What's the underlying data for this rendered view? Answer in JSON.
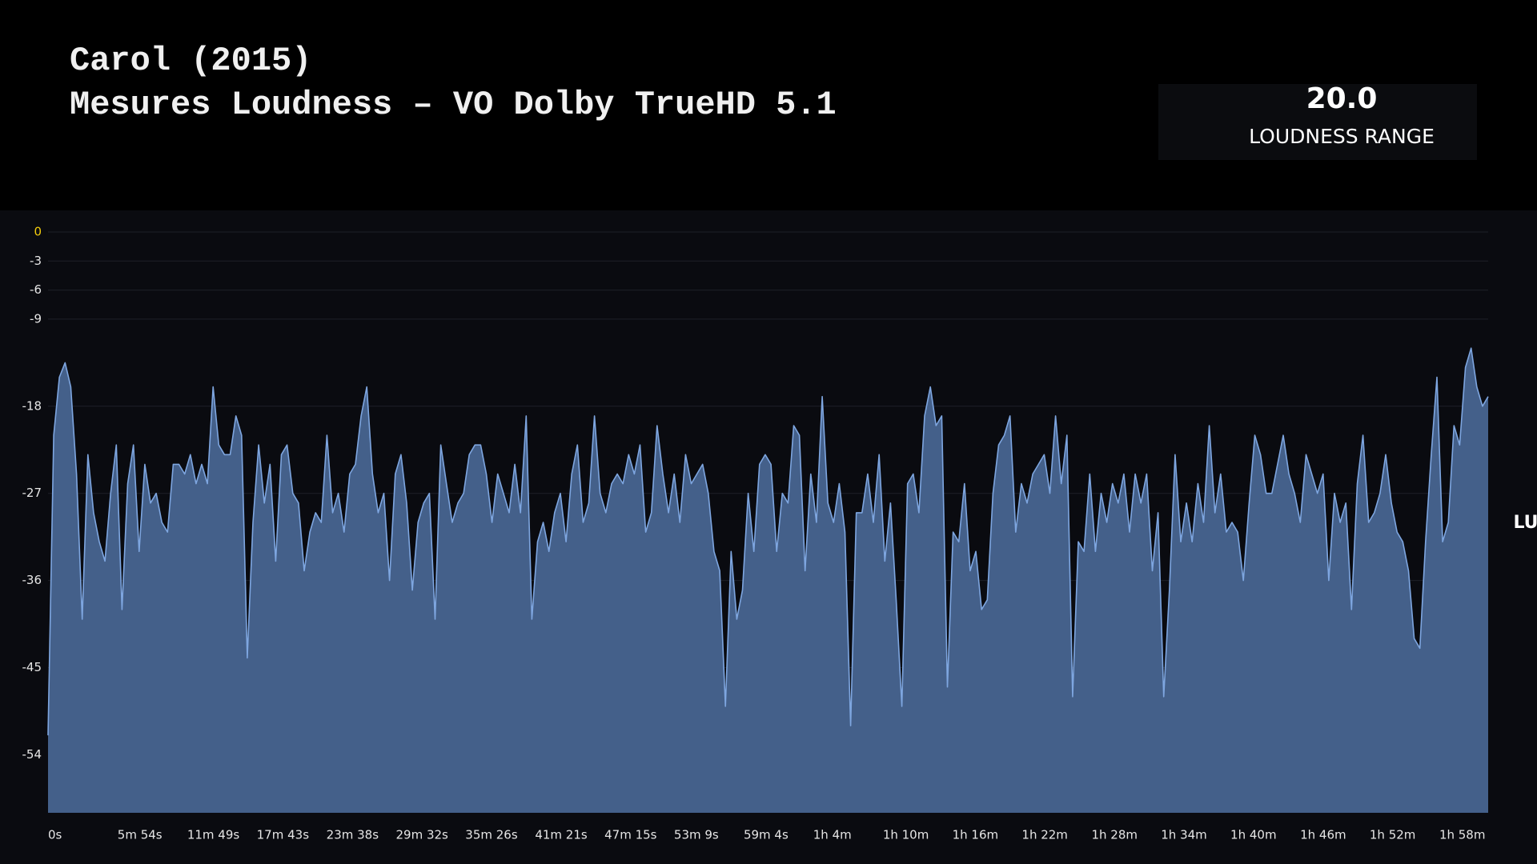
{
  "stat": {
    "value": "20.0",
    "label": "LOUDNESS RANGE"
  },
  "chart_data": {
    "type": "area",
    "title": "Carol (2015)",
    "subtitle": "Mesures Loudness – VO Dolby TrueHD 5.1",
    "y_label": "LU",
    "grid": true,
    "ylim": [
      -60,
      0
    ],
    "yticks": [
      0,
      -3,
      -6,
      -9,
      -18,
      -27,
      -36,
      -45,
      -54
    ],
    "xlim": [
      0,
      7337
    ],
    "xticks": [
      {
        "value": 0,
        "label": "0s"
      },
      {
        "value": 354,
        "label": "5m 54s"
      },
      {
        "value": 709,
        "label": "11m 49s"
      },
      {
        "value": 1063,
        "label": "17m 43s"
      },
      {
        "value": 1418,
        "label": "23m 38s"
      },
      {
        "value": 1772,
        "label": "29m 32s"
      },
      {
        "value": 2126,
        "label": "35m 26s"
      },
      {
        "value": 2481,
        "label": "41m 21s"
      },
      {
        "value": 2835,
        "label": "47m 15s"
      },
      {
        "value": 3189,
        "label": "53m 9s"
      },
      {
        "value": 3544,
        "label": "59m 4s"
      },
      {
        "value": 3898,
        "label": "1h 4m"
      },
      {
        "value": 4253,
        "label": "1h 10m"
      },
      {
        "value": 4607,
        "label": "1h 16m"
      },
      {
        "value": 4961,
        "label": "1h 22m"
      },
      {
        "value": 5316,
        "label": "1h 28m"
      },
      {
        "value": 5670,
        "label": "1h 34m"
      },
      {
        "value": 6024,
        "label": "1h 40m"
      },
      {
        "value": 6379,
        "label": "1h 46m"
      },
      {
        "value": 6733,
        "label": "1h 52m"
      },
      {
        "value": 7088,
        "label": "1h 58m"
      }
    ],
    "x": [
      0,
      29,
      58,
      87,
      116,
      145,
      174,
      203,
      232,
      261,
      290,
      319,
      348,
      377,
      406,
      435,
      464,
      493,
      522,
      551,
      580,
      609,
      638,
      667,
      696,
      725,
      754,
      783,
      812,
      841,
      870,
      899,
      928,
      957,
      986,
      1015,
      1044,
      1073,
      1102,
      1131,
      1160,
      1189,
      1218,
      1247,
      1276,
      1305,
      1334,
      1363,
      1392,
      1421,
      1450,
      1479,
      1508,
      1537,
      1566,
      1595,
      1624,
      1653,
      1682,
      1711,
      1740,
      1769,
      1798,
      1827,
      1856,
      1885,
      1914,
      1943,
      1972,
      2001,
      2030,
      2059,
      2088,
      2117,
      2146,
      2175,
      2204,
      2233,
      2262,
      2291,
      2320,
      2349,
      2378,
      2407,
      2436,
      2465,
      2494,
      2523,
      2552,
      2581,
      2610,
      2639,
      2668,
      2697,
      2726,
      2755,
      2784,
      2813,
      2842,
      2871,
      2900,
      2929,
      2958,
      2987,
      3016,
      3045,
      3074,
      3103,
      3132,
      3161,
      3190,
      3219,
      3248,
      3277,
      3306,
      3335,
      3364,
      3393,
      3422,
      3451,
      3480,
      3509,
      3538,
      3567,
      3596,
      3625,
      3654,
      3683,
      3712,
      3741,
      3770,
      3799,
      3828,
      3857,
      3886,
      3915,
      3944,
      3973,
      4002,
      4031,
      4060,
      4089,
      4118,
      4147,
      4176,
      4205,
      4234,
      4263,
      4292,
      4321,
      4350,
      4379,
      4408,
      4437,
      4466,
      4495,
      4524,
      4553,
      4582,
      4611,
      4640,
      4669,
      4698,
      4727,
      4756,
      4785,
      4814,
      4843,
      4872,
      4901,
      4930,
      4959,
      4988,
      5017,
      5046,
      5075,
      5104,
      5133,
      5162,
      5191,
      5220,
      5249,
      5278,
      5307,
      5336,
      5365,
      5394,
      5423,
      5452,
      5481,
      5510,
      5539,
      5568,
      5597,
      5626,
      5655,
      5684,
      5713,
      5742,
      5771,
      5800,
      5829,
      5858,
      5887,
      5916,
      5945,
      5974,
      6003,
      6032,
      6061,
      6090,
      6119,
      6148,
      6177,
      6206,
      6235,
      6264,
      6293,
      6322,
      6351,
      6380,
      6409,
      6438,
      6467,
      6496,
      6525,
      6554,
      6583,
      6612,
      6641,
      6670,
      6699,
      6728,
      6757,
      6786,
      6815,
      6844,
      6873,
      6902,
      6931,
      6960,
      6989,
      7018,
      7047,
      7076,
      7105,
      7134,
      7163,
      7192,
      7221,
      7250,
      7279,
      7308,
      7337
    ],
    "series": [
      {
        "name": "LU",
        "color": "#7ea6e0",
        "fill": "#44608a",
        "values": [
          -52,
          -21,
          -15,
          -13.5,
          -16,
          -25,
          -40,
          -23,
          -29,
          -32,
          -34,
          -27,
          -22,
          -39,
          -26,
          -22,
          -33,
          -24,
          -28,
          -27,
          -30,
          -31,
          -24,
          -24,
          -25,
          -23,
          -26,
          -24,
          -26,
          -16,
          -22,
          -23,
          -23,
          -19,
          -21,
          -44,
          -30,
          -22,
          -28,
          -24,
          -34,
          -23,
          -22,
          -27,
          -28,
          -35,
          -31,
          -29,
          -30,
          -21,
          -29,
          -27,
          -31,
          -25,
          -24,
          -19,
          -16,
          -25,
          -29,
          -27,
          -36,
          -25,
          -23,
          -28,
          -37,
          -30,
          -28,
          -27,
          -40,
          -22,
          -26,
          -30,
          -28,
          -27,
          -23,
          -22,
          -22,
          -25,
          -30,
          -25,
          -27,
          -29,
          -24,
          -29,
          -19,
          -40,
          -32,
          -30,
          -33,
          -29,
          -27,
          -32,
          -25,
          -22,
          -30,
          -28,
          -19,
          -27,
          -29,
          -26,
          -25,
          -26,
          -23,
          -25,
          -22,
          -31,
          -29,
          -20,
          -25,
          -29,
          -25,
          -30,
          -23,
          -26,
          -25,
          -24,
          -27,
          -33,
          -35,
          -49,
          -33,
          -40,
          -37,
          -27,
          -33,
          -24,
          -23,
          -24,
          -33,
          -27,
          -28,
          -20,
          -21,
          -35,
          -25,
          -30,
          -17,
          -28,
          -30,
          -26,
          -31,
          -51,
          -29,
          -29,
          -25,
          -30,
          -23,
          -34,
          -28,
          -38,
          -49,
          -26,
          -25,
          -29,
          -19,
          -16,
          -20,
          -19,
          -47,
          -31,
          -32,
          -26,
          -35,
          -33,
          -39,
          -38,
          -27,
          -22,
          -21,
          -19,
          -31,
          -26,
          -28,
          -25,
          -24,
          -23,
          -27,
          -19,
          -26,
          -21,
          -48,
          -32,
          -33,
          -25,
          -33,
          -27,
          -30,
          -26,
          -28,
          -25,
          -31,
          -25,
          -28,
          -25,
          -35,
          -29,
          -48,
          -37,
          -23,
          -32,
          -28,
          -32,
          -26,
          -30,
          -20,
          -29,
          -25,
          -31,
          -30,
          -31,
          -36,
          -28,
          -21,
          -23,
          -27,
          -27,
          -24,
          -21,
          -25,
          -27,
          -30,
          -23,
          -25,
          -27,
          -25,
          -36,
          -27,
          -30,
          -28,
          -39,
          -26,
          -21,
          -30,
          -29,
          -27,
          -23,
          -28,
          -31,
          -32,
          -35,
          -42,
          -43,
          -32,
          -23,
          -15,
          -32,
          -30,
          -20,
          -22,
          -14,
          -12,
          -16,
          -18,
          -17
        ]
      }
    ]
  }
}
